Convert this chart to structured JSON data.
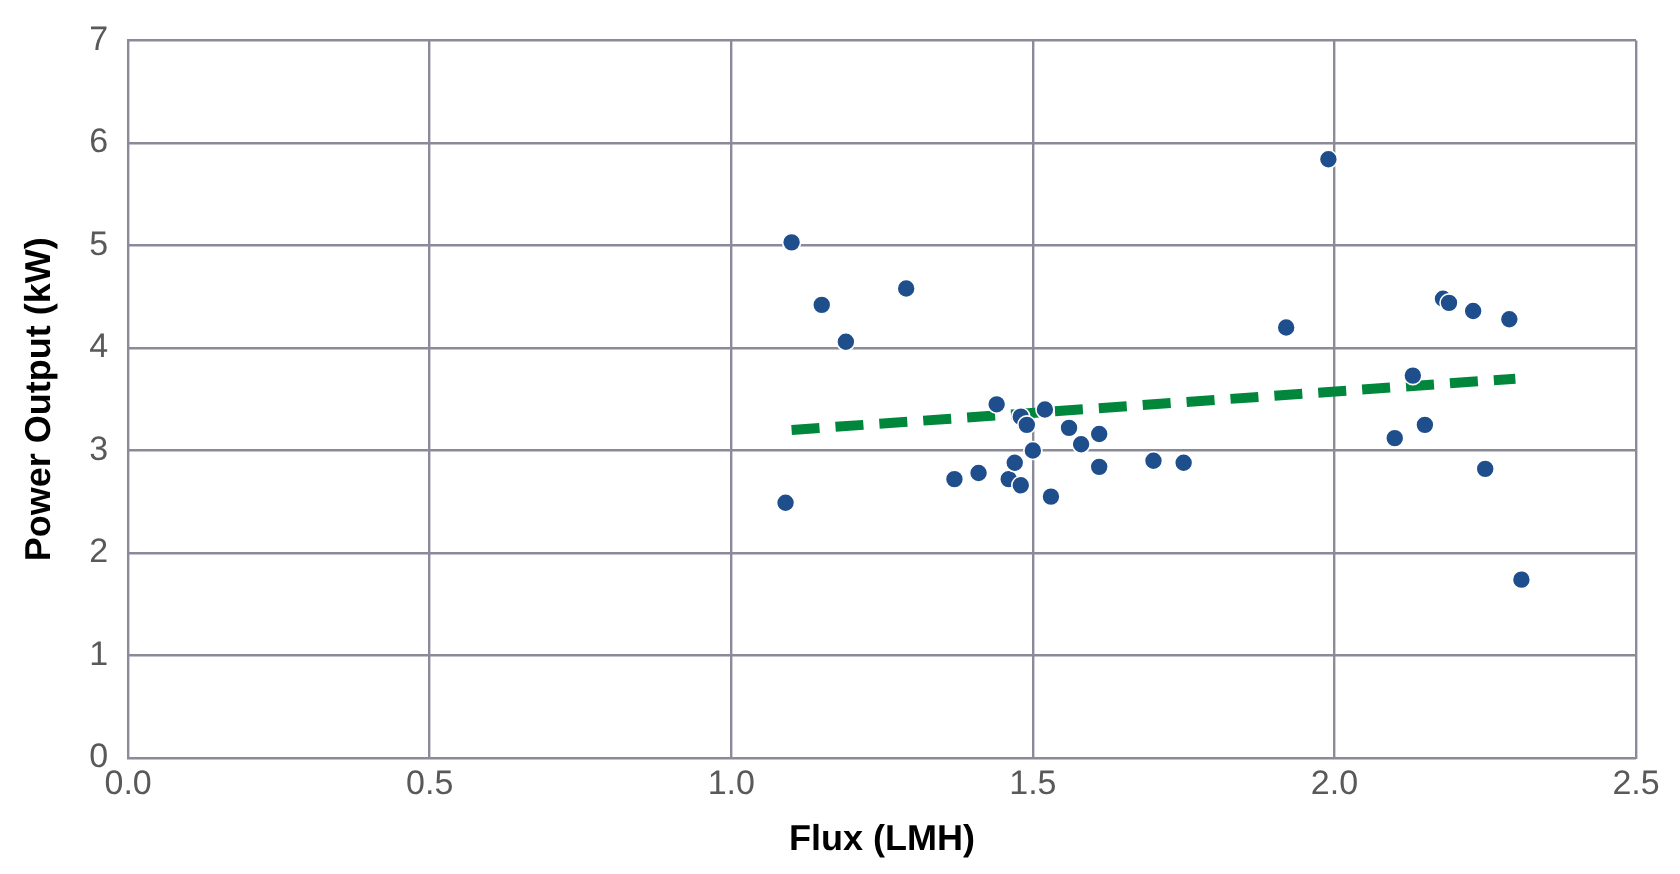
{
  "chart_data": {
    "type": "scatter",
    "xlabel": "Flux (LMH)",
    "ylabel": "Power Output (kW)",
    "xlim": [
      0,
      2.5
    ],
    "xticks": [
      {
        "value": 0,
        "label": "0.0"
      },
      {
        "value": 0.5,
        "label": "0.5"
      },
      {
        "value": 1,
        "label": "1.0"
      },
      {
        "value": 1.5,
        "label": "1.5"
      },
      {
        "value": 2,
        "label": "2.0"
      },
      {
        "value": 2.5,
        "label": "2.5"
      }
    ],
    "ylim": [
      0,
      7
    ],
    "yticks": [
      0,
      1,
      2,
      3,
      4,
      5,
      6,
      7
    ],
    "grid": true,
    "legend": false,
    "marker": "circle",
    "series": [
      {
        "color": "#1f4e8c",
        "x": [
          1.09,
          1.1,
          1.15,
          1.19,
          1.29,
          1.37,
          1.41,
          1.44,
          1.46,
          1.48,
          1.47,
          1.48,
          1.49,
          1.5,
          1.52,
          1.53,
          1.56,
          1.58,
          1.61,
          1.61,
          1.7,
          1.75,
          1.92,
          1.99,
          2.1,
          2.13,
          2.15,
          2.18,
          2.19,
          2.23,
          2.25,
          2.29,
          2.31
        ],
        "values": [
          2.49,
          5.03,
          4.42,
          4.06,
          4.58,
          2.72,
          2.78,
          3.45,
          2.72,
          2.66,
          2.88,
          3.33,
          3.25,
          3.0,
          3.4,
          2.55,
          3.22,
          3.06,
          3.16,
          2.84,
          2.9,
          2.88,
          4.2,
          5.84,
          3.12,
          3.73,
          3.25,
          4.48,
          4.44,
          4.36,
          2.82,
          4.28,
          1.74
        ]
      },
      {
        "type": "line",
        "color": "#00873c",
        "line_style": "dashed",
        "marker": "none",
        "x": [
          1.1,
          2.3
        ],
        "values": [
          3.2,
          3.7
        ]
      }
    ]
  }
}
